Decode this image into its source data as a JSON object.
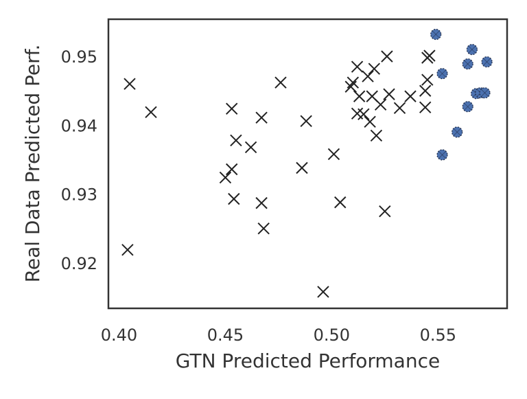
{
  "chart_data": {
    "type": "scatter",
    "title": "",
    "xlabel": "GTN Predicted Performance",
    "ylabel": "Real Data Predicted Perf.",
    "xlim": [
      0.395,
      0.5825
    ],
    "ylim": [
      0.9135,
      0.9555
    ],
    "xticks": [
      0.4,
      0.45,
      0.5,
      0.55
    ],
    "xtick_labels": [
      "0.40",
      "0.45",
      "0.50",
      "0.55"
    ],
    "yticks": [
      0.92,
      0.93,
      0.94,
      0.95
    ],
    "ytick_labels": [
      "0.92",
      "0.93",
      "0.94",
      "0.95"
    ],
    "grid": false,
    "colors": {
      "x_marker": "#222222",
      "highlight_marker": "#4c72b0",
      "axes": "#333333"
    },
    "series": [
      {
        "marker": "x",
        "points": [
          [
            0.404,
            0.922
          ],
          [
            0.405,
            0.9461
          ],
          [
            0.415,
            0.942
          ],
          [
            0.45,
            0.9325
          ],
          [
            0.453,
            0.9425
          ],
          [
            0.453,
            0.9337
          ],
          [
            0.454,
            0.9294
          ],
          [
            0.455,
            0.9379
          ],
          [
            0.462,
            0.9369
          ],
          [
            0.467,
            0.9288
          ],
          [
            0.467,
            0.9412
          ],
          [
            0.468,
            0.9251
          ],
          [
            0.476,
            0.9463
          ],
          [
            0.486,
            0.9339
          ],
          [
            0.488,
            0.9407
          ],
          [
            0.496,
            0.9159
          ],
          [
            0.501,
            0.9359
          ],
          [
            0.504,
            0.9289
          ],
          [
            0.509,
            0.9457
          ],
          [
            0.51,
            0.9463
          ],
          [
            0.512,
            0.9486
          ],
          [
            0.512,
            0.9418
          ],
          [
            0.513,
            0.9443
          ],
          [
            0.515,
            0.9417
          ],
          [
            0.517,
            0.9472
          ],
          [
            0.518,
            0.9406
          ],
          [
            0.519,
            0.9443
          ],
          [
            0.52,
            0.9483
          ],
          [
            0.521,
            0.9386
          ],
          [
            0.523,
            0.9431
          ],
          [
            0.525,
            0.9276
          ],
          [
            0.526,
            0.9501
          ],
          [
            0.527,
            0.9446
          ],
          [
            0.532,
            0.9426
          ],
          [
            0.537,
            0.9443
          ],
          [
            0.544,
            0.9427
          ],
          [
            0.544,
            0.9451
          ],
          [
            0.545,
            0.9467
          ],
          [
            0.545,
            0.9499
          ],
          [
            0.546,
            0.9502
          ]
        ]
      },
      {
        "marker": "circle",
        "points": [
          [
            0.549,
            0.9533
          ],
          [
            0.552,
            0.9476
          ],
          [
            0.552,
            0.9358
          ],
          [
            0.559,
            0.9391
          ],
          [
            0.564,
            0.9428
          ],
          [
            0.564,
            0.949
          ],
          [
            0.566,
            0.9511
          ],
          [
            0.568,
            0.9447
          ],
          [
            0.57,
            0.9448
          ],
          [
            0.572,
            0.9448
          ],
          [
            0.573,
            0.9493
          ]
        ]
      }
    ]
  }
}
